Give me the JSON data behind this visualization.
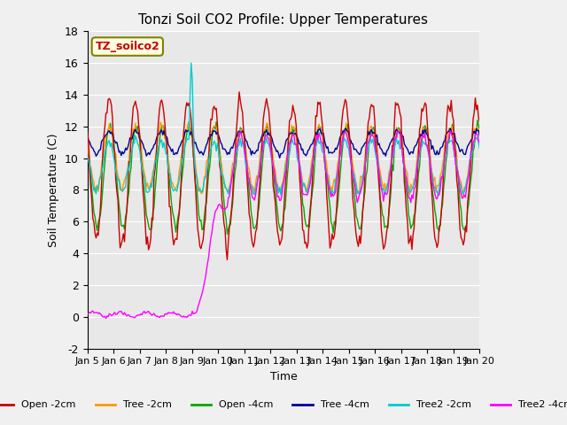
{
  "title": "Tonzi Soil CO2 Profile: Upper Temperatures",
  "ylabel": "Soil Temperature (C)",
  "xlabel": "Time",
  "ylim": [
    -2,
    18
  ],
  "xlim": [
    0,
    360
  ],
  "annotation_text": "TZ_soilco2",
  "bg_color": "#e8e8e8",
  "plot_bg": "#e8e8e8",
  "series_colors": {
    "Open -2cm": "#cc0000",
    "Tree -2cm": "#ff9900",
    "Open -4cm": "#00aa00",
    "Tree -4cm": "#000099",
    "Tree2 -2cm": "#00cccc",
    "Tree2 -4cm": "#ff00ff"
  },
  "xtick_labels": [
    "Jan 5",
    "Jan 6",
    "Jan 7",
    "Jan 8",
    "Jan 9",
    "Jan 10",
    "Jan 11",
    "Jan 12",
    "Jan 13",
    "Jan 14",
    "Jan 15",
    "Jan 16",
    "Jan 17",
    "Jan 18",
    "Jan 19",
    "Jan 20"
  ],
  "ytick_values": [
    -2,
    0,
    2,
    4,
    6,
    8,
    10,
    12,
    14,
    16,
    18
  ]
}
